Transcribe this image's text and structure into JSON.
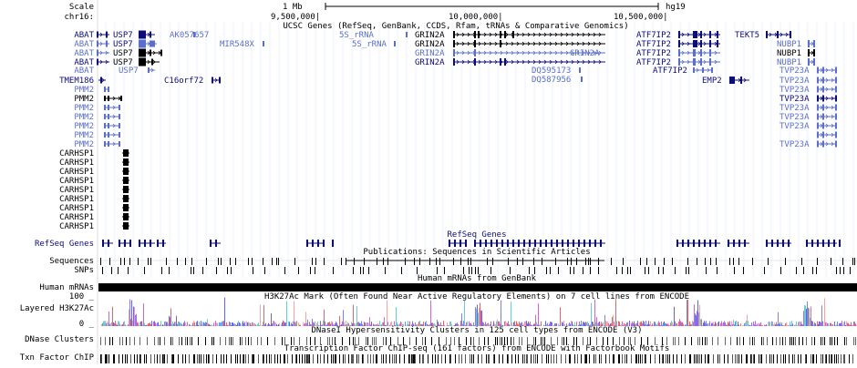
{
  "ruler": {
    "scale_label": "Scale",
    "chrom_label": "chr16:",
    "scale_value": "1 Mb",
    "assembly": "hg19",
    "positions": [
      "9,500,000|",
      "10,000,000|",
      "10,500,000|"
    ]
  },
  "tracks": {
    "ucsc_genes_title": "UCSC Genes (RefSeq, GenBank, CCDS, Rfam, tRNAs & Comparative Genomics)",
    "refseq_title": "RefSeq Genes",
    "publications_title": "Publications: Sequences in Scientific Articles",
    "human_mrnas_title": "Human mRNAs from GenBank",
    "h3k27ac_title": "H3K27Ac Mark (Often Found Near Active Regulatory Elements) on 7 cell lines from ENCODE",
    "dnase_title": "DNaseI Hypersensitivity Clusters in 125 cell types from ENCODE (V3)",
    "txn_title": "Transcription Factor ChIP-seq (161 factors) from ENCODE with Factorbook Motifs"
  },
  "left_labels": {
    "left_genes": [
      "ABAT",
      "ABAT",
      "ABAT",
      "ABAT",
      "ABAT",
      "TMEM186",
      "PMM2",
      "PMM2",
      "PMM2",
      "PMM2",
      "PMM2",
      "PMM2",
      "PMM2"
    ],
    "carhsp": [
      "CARHSP1",
      "CARHSP1",
      "CARHSP1",
      "CARHSP1",
      "CARHSP1",
      "CARHSP1",
      "CARHSP1",
      "CARHSP1",
      "CARHSP1"
    ],
    "refseq": "RefSeq Genes",
    "sequences": "Sequences",
    "snps": "SNPs",
    "human_mrnas": "Human mRNAs",
    "h3k_max": "100 _",
    "h3k": "Layered H3K27Ac",
    "h3k_min": "0 _",
    "dnase": "DNase Clusters",
    "txn": "Txn Factor ChIP"
  },
  "gene_labels": {
    "usp7": [
      "USP7",
      "USP7",
      "USP7",
      "USP7",
      "USP7"
    ],
    "ak": "AK057657",
    "mir": "MIR548X",
    "c16": "C16orf72",
    "rna1": "5S_rRNA",
    "rna2": "5S_rRNA",
    "grin": [
      "GRIN2A",
      "GRIN2A",
      "GRIN2A",
      "GRIN2A"
    ],
    "grin_inner": "GRIN2A",
    "dq1": "DQ595173",
    "dq2": "DQ587956",
    "atf": [
      "ATF7IP2",
      "ATF7IP2",
      "ATF7IP2",
      "ATF7IP2",
      "ATF7IP2"
    ],
    "tekt": "TEKT5",
    "emp": "EMP2",
    "nubp": [
      "NUBP1",
      "NUBP1",
      "NUBP1"
    ],
    "tvp": [
      "TVP23A",
      "TVP23A",
      "TVP23A",
      "TVP23A",
      "TVP23A",
      "TVP23A",
      "TVP23A",
      "TVP23A"
    ]
  }
}
